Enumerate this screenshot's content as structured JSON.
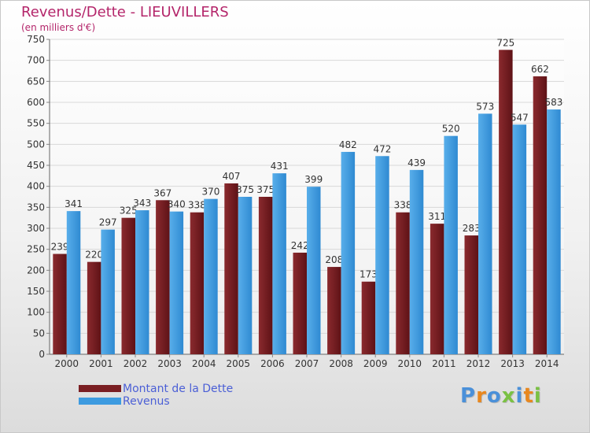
{
  "title": "Revenus/Dette - LIEUVILLERS",
  "subtitle": "(en milliers d'€)",
  "colors": {
    "title": "#b4256a",
    "dette": "#7a1e22",
    "revenus": "#3d9be0",
    "grid": "#d8d8d8",
    "legend_text": "#4b5fd6"
  },
  "legend": [
    {
      "label": "Montant de la Dette",
      "color": "#7a1e22"
    },
    {
      "label": "Revenus",
      "color": "#3d9be0"
    }
  ],
  "logo": {
    "text": "Proxiti",
    "letter_colors": [
      "#4a90d9",
      "#e8871e",
      "#4a90d9",
      "#7ac143",
      "#4a90d9",
      "#e8871e",
      "#7ac143"
    ]
  },
  "chart_data": {
    "type": "bar",
    "title": "Revenus/Dette - LIEUVILLERS",
    "subtitle": "(en milliers d'€)",
    "categories": [
      "2000",
      "2001",
      "2002",
      "2003",
      "2004",
      "2005",
      "2006",
      "2007",
      "2008",
      "2009",
      "2010",
      "2011",
      "2012",
      "2013",
      "2014"
    ],
    "series": [
      {
        "name": "Montant de la Dette",
        "values": [
          239,
          220,
          325,
          367,
          338,
          407,
          375,
          242,
          208,
          173,
          338,
          311,
          283,
          725,
          662
        ]
      },
      {
        "name": "Revenus",
        "values": [
          341,
          297,
          343,
          340,
          370,
          375,
          431,
          399,
          482,
          472,
          439,
          520,
          573,
          547,
          583
        ]
      }
    ],
    "ylim": [
      0,
      750
    ],
    "yticks": [
      0,
      50,
      100,
      150,
      200,
      250,
      300,
      350,
      400,
      450,
      500,
      550,
      600,
      650,
      700,
      750
    ],
    "grid": true,
    "legend_position": "bottom-left"
  }
}
